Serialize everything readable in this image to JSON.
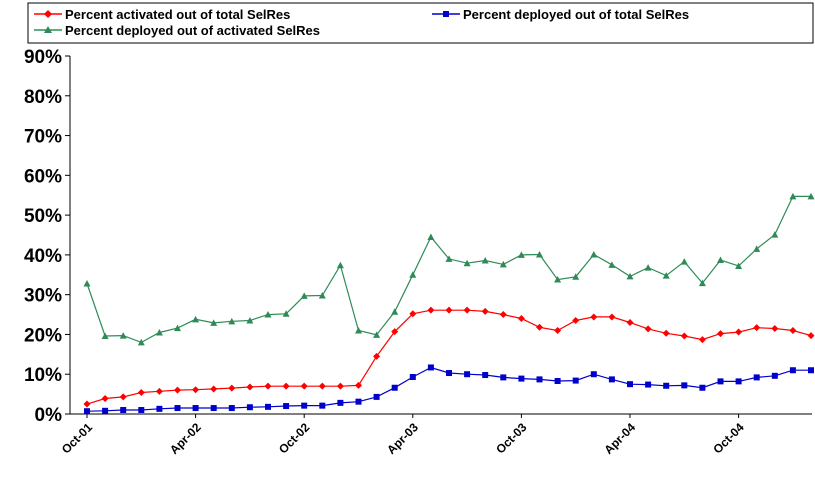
{
  "chart_data": {
    "type": "line",
    "title": "",
    "xlabel": "",
    "ylabel": "",
    "ylim": [
      0,
      90
    ],
    "y_tick_labels": [
      "0%",
      "10%",
      "20%",
      "30%",
      "40%",
      "50%",
      "60%",
      "70%",
      "80%",
      "90%"
    ],
    "x_tick_labels": [
      {
        "label": "Oct-01",
        "index": 0
      },
      {
        "label": "Apr-02",
        "index": 6
      },
      {
        "label": "Oct-02",
        "index": 12
      },
      {
        "label": "Apr-03",
        "index": 18
      },
      {
        "label": "Oct-03",
        "index": 24
      },
      {
        "label": "Apr-04",
        "index": 30
      },
      {
        "label": "Oct-04",
        "index": 36
      }
    ],
    "x": [
      "Oct-01",
      "Nov-01",
      "Dec-01",
      "Jan-02",
      "Feb-02",
      "Mar-02",
      "Apr-02",
      "May-02",
      "Jun-02",
      "Jul-02",
      "Aug-02",
      "Sep-02",
      "Oct-02",
      "Nov-02",
      "Dec-02",
      "Jan-03",
      "Feb-03",
      "Mar-03",
      "Apr-03",
      "May-03",
      "Jun-03",
      "Jul-03",
      "Aug-03",
      "Sep-03",
      "Oct-03",
      "Nov-03",
      "Dec-03",
      "Jan-04",
      "Feb-04",
      "Mar-04",
      "Apr-04",
      "May-04",
      "Jun-04",
      "Jul-04",
      "Aug-04",
      "Sep-04",
      "Oct-04",
      "Nov-04",
      "Dec-04",
      "Jan-05",
      "Feb-05"
    ],
    "legend_position": "top",
    "grid": false,
    "series": [
      {
        "name": "Percent activated out of total SelRes",
        "color": "#ff0000",
        "marker": "diamond",
        "values": [
          2.5,
          3.9,
          4.3,
          5.4,
          5.7,
          6.0,
          6.1,
          6.3,
          6.5,
          6.8,
          7.0,
          7.0,
          7.0,
          7.0,
          7.0,
          7.2,
          14.5,
          20.7,
          25.2,
          26.1,
          26.1,
          26.1,
          25.8,
          25.0,
          24.0,
          21.8,
          21.0,
          23.5,
          24.4,
          24.4,
          23.0,
          21.4,
          20.3,
          19.6,
          18.7,
          20.2,
          20.6,
          21.7,
          21.5,
          21.0,
          19.7
        ]
      },
      {
        "name": "Percent deployed out of total SelRes",
        "color": "#0000cc",
        "marker": "square",
        "values": [
          0.7,
          0.8,
          1.0,
          1.0,
          1.3,
          1.5,
          1.5,
          1.5,
          1.5,
          1.7,
          1.8,
          2.0,
          2.1,
          2.1,
          2.8,
          3.1,
          4.3,
          6.6,
          9.3,
          11.7,
          10.3,
          10.0,
          9.8,
          9.2,
          8.9,
          8.7,
          8.3,
          8.4,
          10.0,
          8.7,
          7.5,
          7.4,
          7.1,
          7.2,
          6.6,
          8.2,
          8.2,
          9.2,
          9.6,
          11.0,
          11.0
        ]
      },
      {
        "name": "Percent deployed out of activated SelRes",
        "color": "#2e8b57",
        "marker": "triangle",
        "values": [
          32.8,
          19.6,
          19.7,
          18.0,
          20.5,
          21.6,
          23.8,
          22.9,
          23.3,
          23.5,
          25.0,
          25.2,
          29.7,
          29.8,
          37.4,
          21.0,
          19.9,
          25.7,
          35.0,
          44.5,
          39.0,
          37.9,
          38.6,
          37.6,
          40.0,
          40.1,
          33.8,
          34.5,
          40.1,
          37.5,
          34.6,
          36.8,
          34.8,
          38.3,
          32.9,
          38.7,
          37.2,
          41.5,
          45.1,
          54.7,
          54.7
        ]
      }
    ]
  }
}
